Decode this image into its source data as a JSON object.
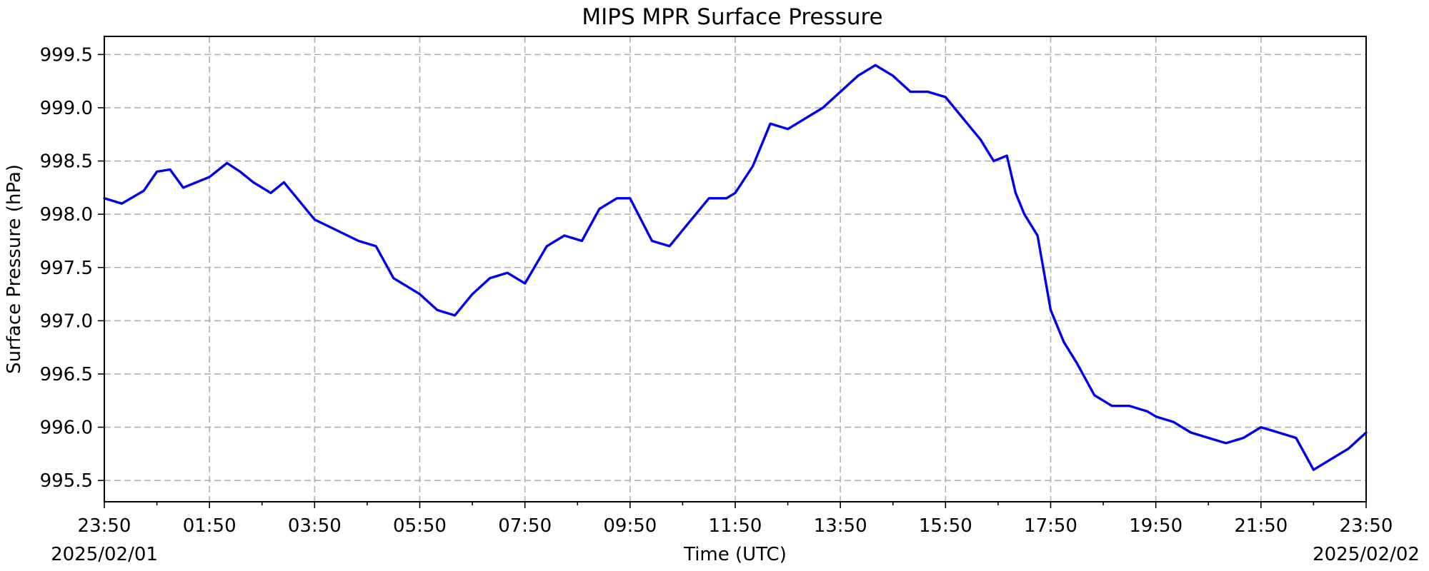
{
  "chart_data": {
    "type": "line",
    "title": "MIPS MPR Surface Pressure",
    "xlabel": "Time (UTC)",
    "ylabel": "Surface Pressure (hPa)",
    "x_start_date_label": "2025/02/01",
    "x_end_date_label": "2025/02/02",
    "xlim": [
      "2025-02-01 23:50",
      "2025-02-02 23:50"
    ],
    "ylim": [
      995.3,
      999.67
    ],
    "x_tick_labels": [
      "23:50",
      "01:50",
      "03:50",
      "05:50",
      "07:50",
      "09:50",
      "11:50",
      "13:50",
      "15:50",
      "17:50",
      "19:50",
      "21:50",
      "23:50"
    ],
    "y_ticks": [
      995.5,
      996.0,
      996.5,
      997.0,
      997.5,
      998.0,
      998.5,
      999.0,
      999.5
    ],
    "y_tick_labels": [
      "995.5",
      "996.0",
      "996.5",
      "997.0",
      "997.5",
      "998.0",
      "998.5",
      "999.0",
      "999.5"
    ],
    "grid": true,
    "color": "#0000ee",
    "series": [
      {
        "x": [
          "2025-02-01 23:50",
          "2025-02-02 00:10",
          "2025-02-02 00:35",
          "2025-02-02 00:50",
          "2025-02-02 01:05",
          "2025-02-02 01:20",
          "2025-02-02 01:35",
          "2025-02-02 01:50",
          "2025-02-02 02:10",
          "2025-02-02 02:25",
          "2025-02-02 02:40",
          "2025-02-02 03:00",
          "2025-02-02 03:15",
          "2025-02-02 03:30",
          "2025-02-02 03:45",
          "2025-02-02 03:50",
          "2025-02-02 04:15",
          "2025-02-02 04:40",
          "2025-02-02 05:00",
          "2025-02-02 05:20",
          "2025-02-02 05:40",
          "2025-02-02 05:50",
          "2025-02-02 06:10",
          "2025-02-02 06:30",
          "2025-02-02 06:50",
          "2025-02-02 07:10",
          "2025-02-02 07:30",
          "2025-02-02 07:50",
          "2025-02-02 08:15",
          "2025-02-02 08:35",
          "2025-02-02 08:55",
          "2025-02-02 09:15",
          "2025-02-02 09:35",
          "2025-02-02 09:50",
          "2025-02-02 10:15",
          "2025-02-02 10:35",
          "2025-02-02 10:55",
          "2025-02-02 11:20",
          "2025-02-02 11:40",
          "2025-02-02 11:50",
          "2025-02-02 12:10",
          "2025-02-02 12:30",
          "2025-02-02 12:50",
          "2025-02-02 13:10",
          "2025-02-02 13:30",
          "2025-02-02 13:50",
          "2025-02-02 14:10",
          "2025-02-02 14:30",
          "2025-02-02 14:50",
          "2025-02-02 15:10",
          "2025-02-02 15:30",
          "2025-02-02 15:50",
          "2025-02-02 16:10",
          "2025-02-02 16:30",
          "2025-02-02 16:45",
          "2025-02-02 17:00",
          "2025-02-02 17:10",
          "2025-02-02 17:20",
          "2025-02-02 17:35",
          "2025-02-02 17:50",
          "2025-02-02 18:05",
          "2025-02-02 18:20",
          "2025-02-02 18:40",
          "2025-02-02 19:00",
          "2025-02-02 19:20",
          "2025-02-02 19:40",
          "2025-02-02 19:50",
          "2025-02-02 20:10",
          "2025-02-02 20:30",
          "2025-02-02 20:50",
          "2025-02-02 21:10",
          "2025-02-02 21:30",
          "2025-02-02 21:50",
          "2025-02-02 22:10",
          "2025-02-02 22:30",
          "2025-02-02 22:50",
          "2025-02-02 23:10",
          "2025-02-02 23:30",
          "2025-02-02 23:50"
        ],
        "values": [
          998.15,
          998.1,
          998.22,
          998.4,
          998.42,
          998.25,
          998.3,
          998.35,
          998.48,
          998.4,
          998.3,
          998.2,
          998.3,
          998.15,
          998.0,
          997.95,
          997.85,
          997.75,
          997.7,
          997.4,
          997.3,
          997.25,
          997.1,
          997.05,
          997.25,
          997.4,
          997.45,
          997.35,
          997.7,
          997.8,
          997.75,
          998.05,
          998.15,
          998.15,
          997.75,
          997.7,
          997.9,
          998.15,
          998.15,
          998.2,
          998.45,
          998.85,
          998.8,
          998.9,
          999.0,
          999.15,
          999.3,
          999.4,
          999.3,
          999.15,
          999.15,
          999.1,
          998.9,
          998.7,
          998.5,
          998.55,
          998.2,
          998.0,
          997.8,
          997.1,
          996.8,
          996.6,
          996.3,
          996.2,
          996.2,
          996.15,
          996.1,
          996.05,
          995.95,
          995.9,
          995.85,
          995.9,
          996.0,
          995.95,
          995.9,
          995.6,
          995.7,
          995.8,
          995.95
        ]
      }
    ]
  }
}
